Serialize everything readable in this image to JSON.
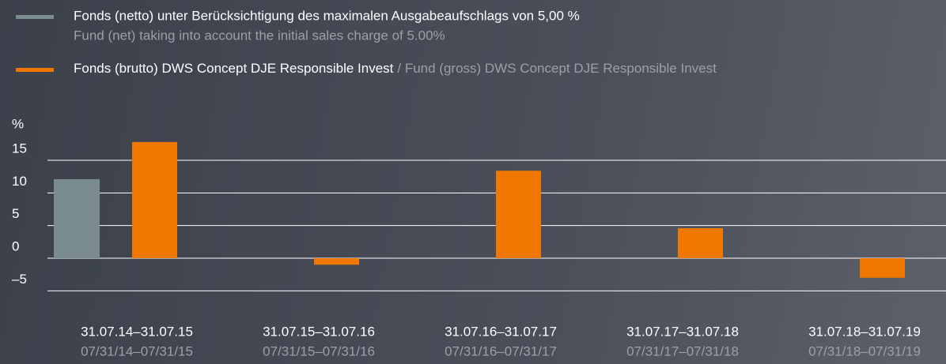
{
  "chart_data": {
    "type": "bar",
    "y_unit_label": "%",
    "categories": [
      "31.07.14–31.07.15",
      "31.07.15–31.07.16",
      "31.07.16–31.07.17",
      "31.07.17–31.07.18",
      "31.07.18–31.07.19"
    ],
    "categories_en": [
      "07/31/14–07/31/15",
      "07/31/15–07/31/16",
      "07/31/16–07/31/17",
      "07/31/17–07/31/18",
      "07/31/18–07/31/19"
    ],
    "series": [
      {
        "name": "Fonds (netto) unter Berücksichtigung des maximalen Ausgabeaufschlags von 5,00 %",
        "name_en": "Fund (net) taking into account the initial sales charge of 5.00%",
        "color": "#7b8c8e",
        "values": [
          12.1,
          null,
          null,
          null,
          null
        ]
      },
      {
        "name": "Fonds (brutto) DWS Concept DJE Responsible Invest",
        "name_en": "/ Fund (gross) DWS Concept DJE Responsible Invest",
        "color": "#f07800",
        "values": [
          17.8,
          -1.0,
          13.4,
          4.6,
          -3.0
        ]
      }
    ],
    "ylim": [
      -5,
      20
    ],
    "yticks": [
      {
        "value": -5,
        "label": "–5"
      },
      0,
      5,
      10,
      15
    ],
    "grid": true
  }
}
